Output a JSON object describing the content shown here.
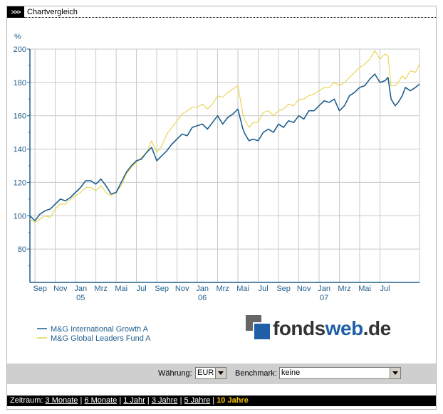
{
  "header": {
    "arrows": ">>>",
    "title": "Chartvergleich"
  },
  "chart_data": {
    "type": "line",
    "ylabel": "%",
    "ylim": [
      60,
      200
    ],
    "yticks": [
      80,
      100,
      120,
      140,
      160,
      180,
      200
    ],
    "xlim": [
      0,
      38.4
    ],
    "month_ticks": [
      "Sep",
      "Nov",
      "Jan",
      "Mrz",
      "Mai",
      "Jul",
      "Sep",
      "Nov",
      "Jan",
      "Mrz",
      "Mai",
      "Jul",
      "Sep",
      "Nov",
      "Jan",
      "Mrz",
      "Mai",
      "Jul"
    ],
    "month_tick_x": [
      1,
      3,
      5,
      7,
      9,
      11,
      13,
      15,
      17,
      19,
      21,
      23,
      25,
      27,
      29,
      31,
      33,
      35
    ],
    "year_labels": [
      "05",
      "06",
      "07"
    ],
    "year_label_x": [
      5,
      17,
      29
    ],
    "grid": true,
    "series": [
      {
        "name": "M&G International Growth A",
        "color": "#1f5f8e",
        "x": [
          0,
          0.5,
          1,
          1.5,
          2,
          2.5,
          3,
          3.5,
          4,
          4.5,
          5,
          5.5,
          6,
          6.5,
          7,
          7.5,
          8,
          8.5,
          9,
          9.5,
          10,
          10.5,
          11,
          11.5,
          12,
          12.5,
          13,
          13.5,
          14,
          14.5,
          15,
          15.5,
          16,
          16.5,
          17,
          17.5,
          18,
          18.5,
          19,
          19.5,
          20,
          20.5,
          21,
          21.2,
          21.6,
          22,
          22.5,
          23,
          23.5,
          24,
          24.5,
          25,
          25.5,
          26,
          26.5,
          27,
          27.5,
          28,
          28.5,
          29,
          29.5,
          30,
          30.5,
          31,
          31.5,
          32,
          32.5,
          33,
          33.5,
          34,
          34.5,
          35,
          35.3,
          35.6,
          36,
          36.3,
          36.7,
          37,
          37.5,
          38,
          38.4
        ],
        "y": [
          100,
          97,
          101,
          103,
          104,
          107,
          110,
          109,
          111,
          114,
          117,
          121,
          121,
          119,
          122,
          118,
          113,
          114,
          120,
          126,
          130,
          133,
          134,
          138,
          141,
          133,
          136,
          139,
          143,
          146,
          149,
          148,
          153,
          154,
          155,
          152,
          156,
          160,
          155,
          159,
          161,
          164,
          152,
          149,
          145,
          146,
          145,
          150,
          152,
          150,
          155,
          153,
          157,
          156,
          160,
          158,
          163,
          163,
          166,
          169,
          168,
          170,
          163,
          166,
          172,
          174,
          177,
          178,
          182,
          185,
          180,
          181,
          183,
          170,
          166,
          168,
          172,
          177,
          175,
          177,
          179
        ]
      },
      {
        "name": "M&G Global Leaders Fund A",
        "color": "#e8d34a",
        "x": [
          0,
          0.5,
          1,
          1.5,
          2,
          2.5,
          3,
          3.5,
          4,
          4.5,
          5,
          5.5,
          6,
          6.5,
          7,
          7.5,
          8,
          8.5,
          9,
          9.5,
          10,
          10.5,
          11,
          11.5,
          12,
          12.5,
          13,
          13.5,
          14,
          14.5,
          15,
          15.5,
          16,
          16.5,
          17,
          17.5,
          18,
          18.5,
          19,
          19.5,
          20,
          20.5,
          21,
          21.2,
          21.6,
          22,
          22.5,
          23,
          23.5,
          24,
          24.5,
          25,
          25.5,
          26,
          26.5,
          27,
          27.5,
          28,
          28.5,
          29,
          29.5,
          30,
          30.5,
          31,
          31.5,
          32,
          32.5,
          33,
          33.5,
          34,
          34.5,
          35,
          35.3,
          35.6,
          36,
          36.3,
          36.7,
          37,
          37.5,
          38,
          38.4
        ],
        "y": [
          98,
          96,
          98,
          100,
          99,
          104,
          107,
          107,
          110,
          112,
          114,
          117,
          117,
          115,
          118,
          114,
          112,
          114,
          118,
          125,
          129,
          132,
          135,
          138,
          145,
          138,
          142,
          149,
          153,
          157,
          161,
          163,
          165,
          165,
          167,
          164,
          167,
          172,
          171,
          174,
          176,
          178,
          161,
          157,
          153,
          156,
          156,
          162,
          163,
          160,
          163,
          164,
          167,
          166,
          170,
          170,
          172,
          173,
          175,
          177,
          177,
          180,
          178,
          180,
          183,
          186,
          189,
          191,
          194,
          199,
          194,
          197,
          196,
          178,
          178,
          180,
          184,
          182,
          187,
          186,
          191
        ]
      }
    ]
  },
  "legend": [
    {
      "label": "M&G International Growth A",
      "color": "#1f5f8e"
    },
    {
      "label": "M&G Global Leaders Fund A",
      "color": "#e8d34a"
    }
  ],
  "logo": {
    "part1": "fonds",
    "part2": "web",
    "part3": ".de"
  },
  "controls": {
    "currency_label": "Währung:",
    "currency_value": "EUR",
    "benchmark_label": "Benchmark:",
    "benchmark_value": "keine"
  },
  "footer": {
    "label": "Zeitraum:",
    "options": [
      "3 Monate",
      "6 Monate",
      "1 Jahr",
      "3 Jahre",
      "5 Jahre"
    ],
    "active": "10 Jahre"
  }
}
